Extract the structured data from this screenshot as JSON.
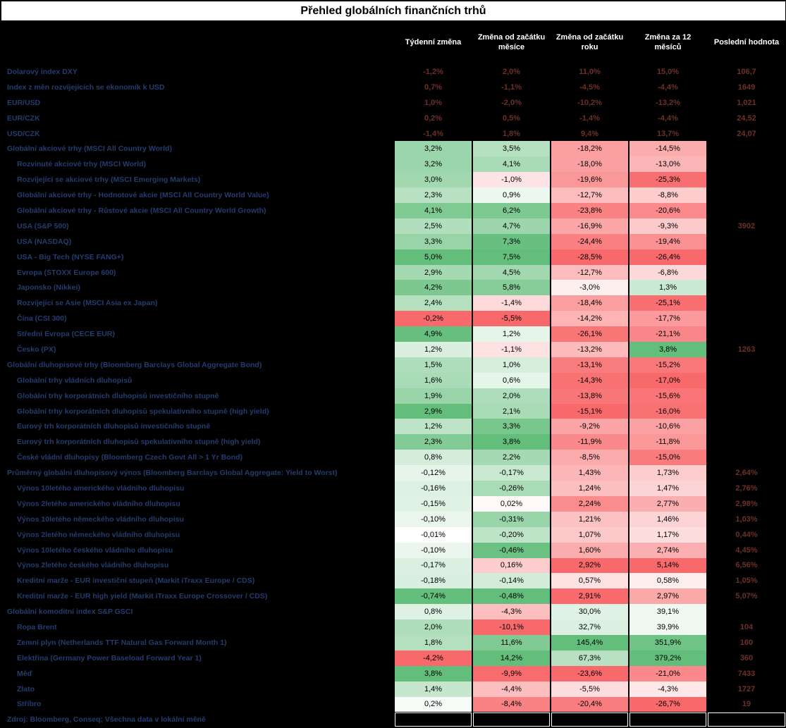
{
  "chart_data": {
    "type": "table",
    "title": "Přehled globálních finančních trhů",
    "columns": [
      "Týdenní změna",
      "Změna od začátku měsíce",
      "Změna od začátku roku",
      "Změna za 12 měsíců",
      "Poslední hodnota"
    ],
    "footer": "Zdroj: Bloomberg, Conseq; Všechna data v lokální měně",
    "colors": {
      "heat_positive": "#63BE7B",
      "heat_mid": "#FFFFFF",
      "heat_negative": "#F8696B",
      "label_text": "#243C6E",
      "plain_value_text": "#6E3028",
      "header_text": "#FFFFFF",
      "background": "#000000",
      "title_background": "#FFFFFF"
    },
    "groups": [
      {
        "name": "currencies",
        "style": "plain",
        "rows": [
          {
            "label": "Dolarový index DXY",
            "indent": 0,
            "values": [
              "-1,2%",
              "2,0%",
              "11,0%",
              "15,0%"
            ],
            "last": "106,7"
          },
          {
            "label": "Index z měn rozvíjejících se ekonomik k USD",
            "indent": 0,
            "values": [
              "0,7%",
              "-1,1%",
              "-4,5%",
              "-4,4%"
            ],
            "last": "1649"
          },
          {
            "label": "EUR/USD",
            "indent": 0,
            "values": [
              "1,0%",
              "-2,0%",
              "-10,2%",
              "-13,2%"
            ],
            "last": "1,021"
          },
          {
            "label": "EUR/CZK",
            "indent": 0,
            "values": [
              "0,2%",
              "0,5%",
              "-1,4%",
              "-4,4%"
            ],
            "last": "24,52"
          },
          {
            "label": "USD/CZK",
            "indent": 0,
            "values": [
              "-1,4%",
              "1,8%",
              "9,4%",
              "13,7%"
            ],
            "last": "24,07"
          }
        ]
      },
      {
        "name": "equities",
        "style": "heatmap",
        "rows": [
          {
            "label": "Globální akciové trhy (MSCI All Country World)",
            "indent": 0,
            "values": [
              "3,2%",
              "3,5%",
              "-18,2%",
              "-14,5%"
            ],
            "last": ""
          },
          {
            "label": "Rozvinuté akciové trhy (MSCI World)",
            "indent": 1,
            "values": [
              "3,2%",
              "4,1%",
              "-18,0%",
              "-13,0%"
            ],
            "last": ""
          },
          {
            "label": "Rozvíjející se akciové trhy (MSCI Emerging Markets)",
            "indent": 1,
            "values": [
              "3,0%",
              "-1,0%",
              "-19,6%",
              "-25,3%"
            ],
            "last": ""
          },
          {
            "label": "Globální akciové trhy - Hodnotové akcie (MSCI All Country World Value)",
            "indent": 1,
            "values": [
              "2,3%",
              "0,9%",
              "-12,7%",
              "-8,8%"
            ],
            "last": ""
          },
          {
            "label": "Globální akciové trhy - Růstové akcie (MSCI All Country World Growth)",
            "indent": 1,
            "values": [
              "4,1%",
              "6,2%",
              "-23,8%",
              "-20,6%"
            ],
            "last": ""
          },
          {
            "label": "USA (S&P 500)",
            "indent": 1,
            "values": [
              "2,5%",
              "4,7%",
              "-16,9%",
              "-9,3%"
            ],
            "last": "3902"
          },
          {
            "label": "USA (NASDAQ)",
            "indent": 1,
            "values": [
              "3,3%",
              "7,3%",
              "-24,4%",
              "-19,4%"
            ],
            "last": ""
          },
          {
            "label": "USA - Big Tech (NYSE FANG+)",
            "indent": 1,
            "values": [
              "5,0%",
              "7,5%",
              "-28,5%",
              "-26,4%"
            ],
            "last": ""
          },
          {
            "label": "Evropa (STOXX Europe 600)",
            "indent": 1,
            "values": [
              "2,9%",
              "4,5%",
              "-12,7%",
              "-6,8%"
            ],
            "last": ""
          },
          {
            "label": "Japonsko (Nikkei)",
            "indent": 1,
            "values": [
              "4,2%",
              "5,8%",
              "-3,0%",
              "1,3%"
            ],
            "last": ""
          },
          {
            "label": "Rozvíjející se Asie (MSCI Asia ex Japan)",
            "indent": 1,
            "values": [
              "2,4%",
              "-1,4%",
              "-18,4%",
              "-25,1%"
            ],
            "last": ""
          },
          {
            "label": "Čína (CSI 300)",
            "indent": 1,
            "values": [
              "-0,2%",
              "-5,5%",
              "-14,2%",
              "-17,7%"
            ],
            "last": ""
          },
          {
            "label": "Střední Evropa (CECE EUR)",
            "indent": 1,
            "values": [
              "4,9%",
              "1,2%",
              "-26,1%",
              "-21,1%"
            ],
            "last": ""
          },
          {
            "label": "Česko (PX)",
            "indent": 1,
            "values": [
              "1,2%",
              "-1,1%",
              "-13,2%",
              "3,8%"
            ],
            "last": "1263"
          }
        ]
      },
      {
        "name": "bonds",
        "style": "heatmap",
        "rows": [
          {
            "label": "Globální dluhopisové trhy (Bloomberg Barclays Global Aggregate Bond)",
            "indent": 0,
            "values": [
              "1,5%",
              "1,0%",
              "-13,1%",
              "-15,2%"
            ],
            "last": ""
          },
          {
            "label": "Globální trhy vládních dluhopisů",
            "indent": 1,
            "values": [
              "1,6%",
              "0,6%",
              "-14,3%",
              "-17,0%"
            ],
            "last": ""
          },
          {
            "label": "Globální trhy korporátních dluhopisů investičního stupně",
            "indent": 1,
            "values": [
              "1,9%",
              "2,0%",
              "-13,8%",
              "-15,6%"
            ],
            "last": ""
          },
          {
            "label": "Globální trhy korporátních dluhopisů spekulativního stupně (high yield)",
            "indent": 1,
            "values": [
              "2,9%",
              "2,1%",
              "-15,1%",
              "-16,0%"
            ],
            "last": ""
          },
          {
            "label": "Eurový trh korporátních dluhopisů investičního stupně",
            "indent": 1,
            "values": [
              "1,2%",
              "3,3%",
              "-9,2%",
              "-10,6%"
            ],
            "last": ""
          },
          {
            "label": "Eurový trh korporátních dluhopisů spekulativního stupně (high yield)",
            "indent": 1,
            "values": [
              "2,3%",
              "3,8%",
              "-11,9%",
              "-11,8%"
            ],
            "last": ""
          },
          {
            "label": "České vládní dluhopisy (Bloomberg Czech Govt All > 1 Yr Bond)",
            "indent": 1,
            "values": [
              "0,8%",
              "2,2%",
              "-8,5%",
              "-15,0%"
            ],
            "last": ""
          }
        ]
      },
      {
        "name": "yields",
        "style": "heatmap",
        "invert": true,
        "rows": [
          {
            "label": "Průměrný globální dluhopisový výnos (Bloomberg Barclays Global Aggregate: Yield to Worst)",
            "indent": 0,
            "values": [
              "-0,12%",
              "-0,17%",
              "1,43%",
              "1,73%"
            ],
            "last": "2,64%"
          },
          {
            "label": "Výnos 10letého amerického vládního dluhopisu",
            "indent": 1,
            "values": [
              "-0,16%",
              "-0,26%",
              "1,24%",
              "1,47%"
            ],
            "last": "2,76%"
          },
          {
            "label": "Výnos 2letého amerického vládního dluhopisu",
            "indent": 1,
            "values": [
              "-0,15%",
              "0,02%",
              "2,24%",
              "2,77%"
            ],
            "last": "2,98%"
          },
          {
            "label": "Výnos 10letého německého vládního dluhopisu",
            "indent": 1,
            "values": [
              "-0,10%",
              "-0,31%",
              "1,21%",
              "1,46%"
            ],
            "last": "1,03%"
          },
          {
            "label": "Výnos 2letého německého vládního dluhopisu",
            "indent": 1,
            "values": [
              "-0,01%",
              "-0,20%",
              "1,07%",
              "1,17%"
            ],
            "last": "0,44%"
          },
          {
            "label": "Výnos 10letého českého vládního dluhopisu",
            "indent": 1,
            "values": [
              "-0,10%",
              "-0,46%",
              "1,60%",
              "2,74%"
            ],
            "last": "4,45%"
          },
          {
            "label": "Výnos 2letého českého vládního dluhopisu",
            "indent": 1,
            "values": [
              "-0,17%",
              "0,16%",
              "2,92%",
              "5,14%"
            ],
            "last": "6,56%"
          },
          {
            "label": "Kreditní marže - EUR investiční stupeň (Markit iTraxx Europe / CDS)",
            "indent": 1,
            "values": [
              "-0,18%",
              "-0,14%",
              "0,57%",
              "0,58%"
            ],
            "last": "1,05%"
          },
          {
            "label": "Kreditní marže - EUR high yield (Markit iTraxx Europe Crossover / CDS)",
            "indent": 1,
            "values": [
              "-0,74%",
              "-0,48%",
              "2,91%",
              "2,97%"
            ],
            "last": "5,07%"
          }
        ]
      },
      {
        "name": "commodities",
        "style": "heatmap",
        "rows": [
          {
            "label": "Globální komoditní index S&P GSCI",
            "indent": 0,
            "values": [
              "0,8%",
              "-4,3%",
              "30,0%",
              "39,1%"
            ],
            "last": ""
          },
          {
            "label": "Ropa Brent",
            "indent": 1,
            "values": [
              "2,0%",
              "-10,1%",
              "32,7%",
              "39,9%"
            ],
            "last": "104"
          },
          {
            "label": "Zemní plyn (Netherlands TTF Natural Gas Forward Month 1)",
            "indent": 1,
            "values": [
              "1,8%",
              "11,6%",
              "145,4%",
              "351,9%"
            ],
            "last": "160"
          },
          {
            "label": "Elektřina (Germany Power Baseload Forward Year 1)",
            "indent": 1,
            "values": [
              "-4,2%",
              "14,2%",
              "67,3%",
              "379,2%"
            ],
            "last": "360"
          },
          {
            "label": "Měď",
            "indent": 1,
            "values": [
              "3,8%",
              "-9,9%",
              "-23,6%",
              "-21,0%"
            ],
            "last": "7433"
          },
          {
            "label": "Zlato",
            "indent": 1,
            "values": [
              "1,4%",
              "-4,4%",
              "-5,5%",
              "-4,3%"
            ],
            "last": "1727"
          },
          {
            "label": "Stříbro",
            "indent": 1,
            "values": [
              "0,2%",
              "-8,4%",
              "-20,4%",
              "-26,7%"
            ],
            "last": "19"
          }
        ]
      }
    ]
  }
}
